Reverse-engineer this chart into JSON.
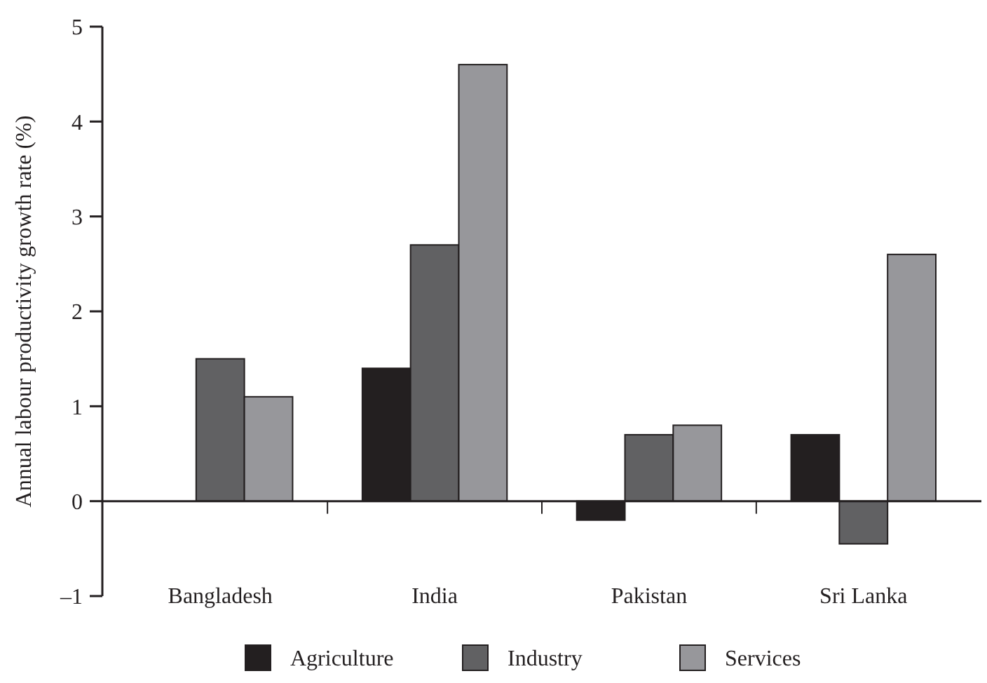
{
  "chart_data": {
    "type": "bar",
    "ylabel": "Annual labour productivity growth rate (%)",
    "categories": [
      "Bangladesh",
      "India",
      "Pakistan",
      "Sri Lanka"
    ],
    "series": [
      {
        "name": "Agriculture",
        "color": "#231f20",
        "values": [
          null,
          1.4,
          -0.2,
          0.7
        ]
      },
      {
        "name": "Industry",
        "color": "#616163",
        "values": [
          1.5,
          2.7,
          0.7,
          -0.45
        ]
      },
      {
        "name": "Services",
        "color": "#97979b",
        "values": [
          1.1,
          4.6,
          0.8,
          2.6
        ]
      }
    ],
    "ylim": [
      -1,
      5
    ],
    "yticks": [
      {
        "value": -1,
        "label": "–1"
      },
      0,
      1,
      2,
      3,
      4,
      5
    ],
    "legend": "bottom"
  }
}
